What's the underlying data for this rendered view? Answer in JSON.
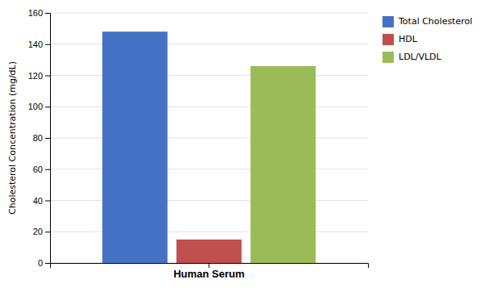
{
  "chart_data": {
    "type": "bar",
    "categories": [
      "Human Serum"
    ],
    "series": [
      {
        "name": "Total Cholesterol",
        "color": "#4472C4",
        "values": [
          148
        ]
      },
      {
        "name": "HDL",
        "color": "#C0504D",
        "values": [
          15
        ]
      },
      {
        "name": "LDL/VLDL",
        "color": "#9BBB59",
        "values": [
          126
        ]
      }
    ],
    "ylabel": "Cholesterol Concentration (mg/dL)",
    "ylim": [
      0,
      160
    ],
    "yticks": [
      0,
      20,
      40,
      60,
      80,
      100,
      120,
      140,
      160
    ],
    "grid": true,
    "legend": "upper right"
  }
}
